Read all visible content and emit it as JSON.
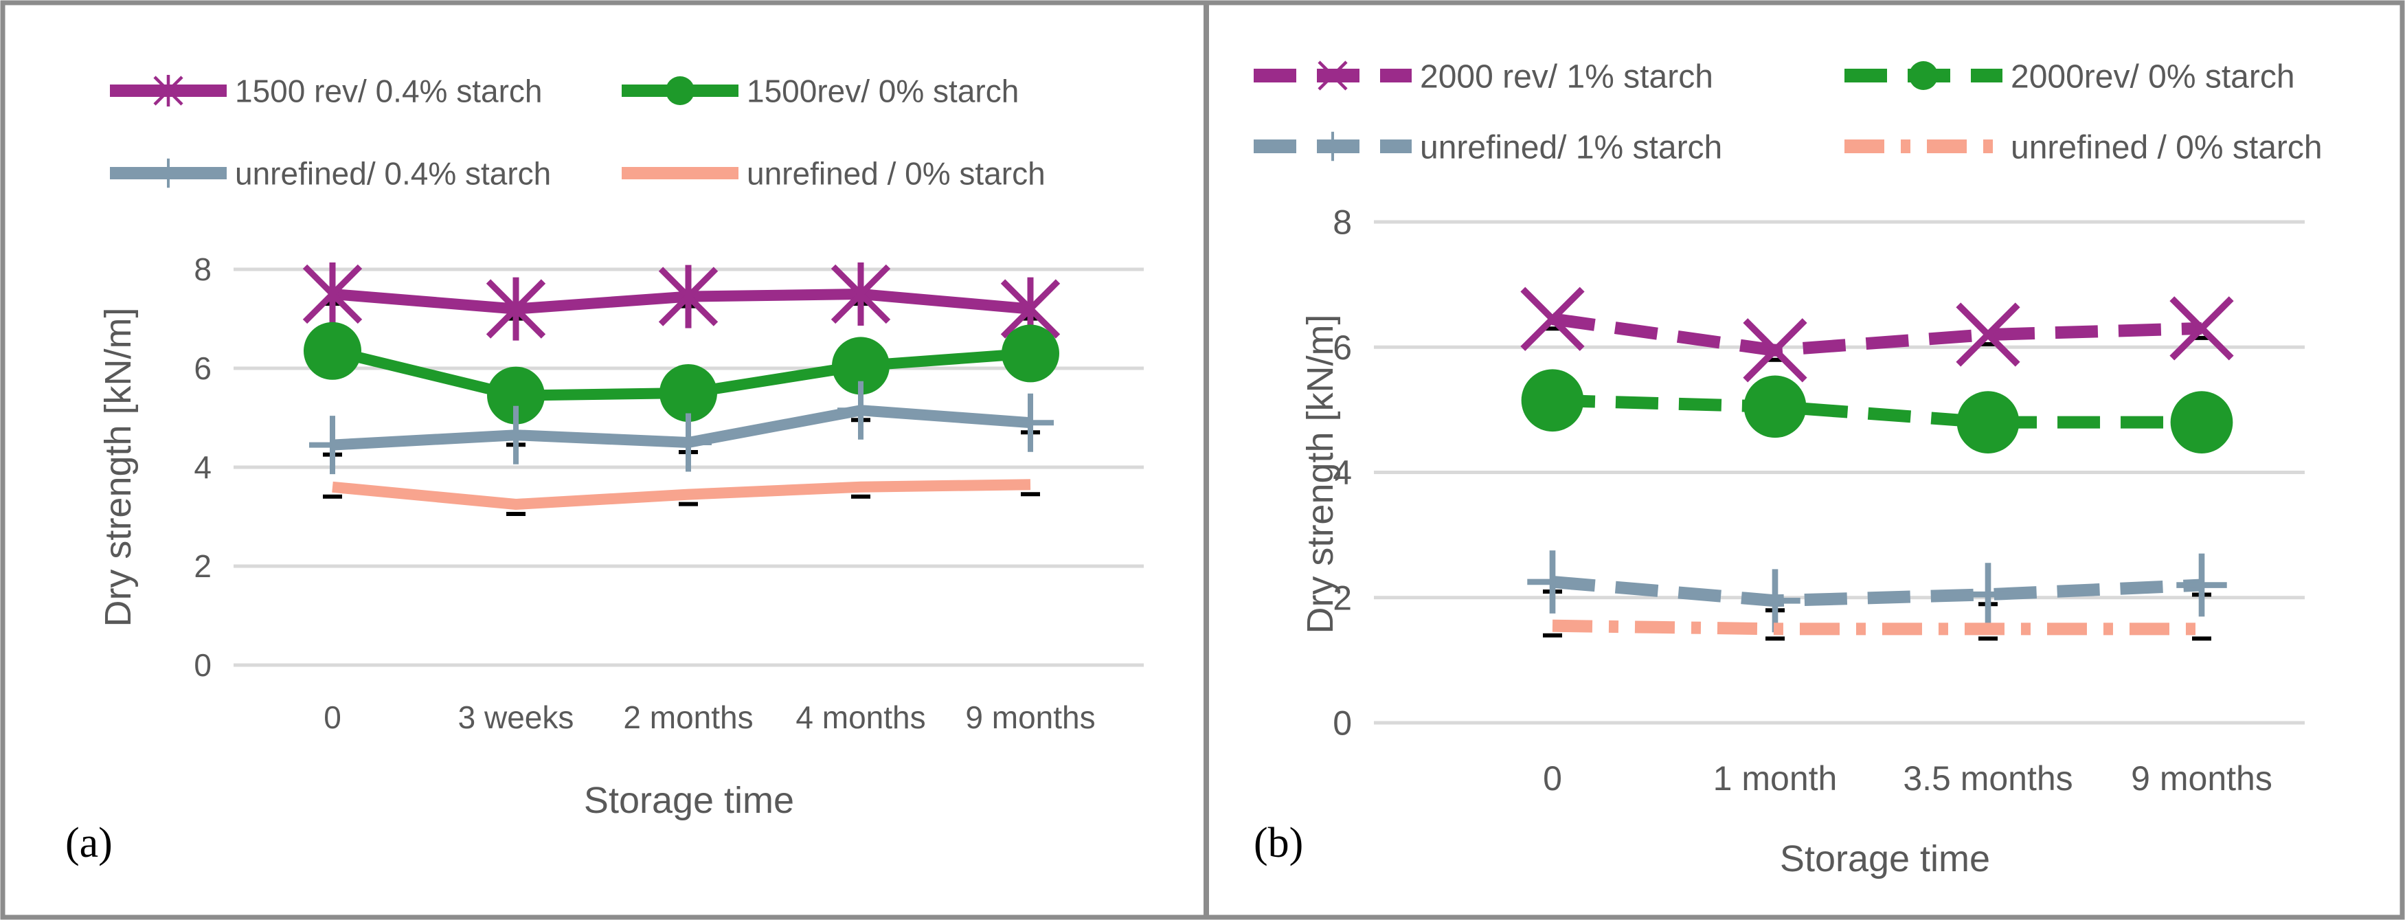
{
  "chart_data": [
    {
      "type": "line",
      "panel_label": "(a)",
      "xlabel": "Storage time",
      "ylabel": "Dry strength [kN/m]",
      "categories": [
        "0",
        "3 weeks",
        "2 months",
        "4 months",
        "9 months"
      ],
      "ylim": [
        0,
        8
      ],
      "yticks": [
        "0",
        "2",
        "4",
        "6",
        "8"
      ],
      "grid": true,
      "legend_position": "top",
      "series": [
        {
          "name": "1500 rev/ 0.4% starch",
          "values": [
            7.5,
            7.2,
            7.45,
            7.5,
            7.2
          ],
          "color": "#9B2B8A",
          "marker": "star",
          "dash": "solid"
        },
        {
          "name": "1500rev/ 0% starch",
          "values": [
            6.35,
            5.45,
            5.5,
            6.05,
            6.3
          ],
          "color": "#1E9A2A",
          "marker": "circle",
          "dash": "solid"
        },
        {
          "name": "unrefined/ 0.4% starch",
          "values": [
            4.45,
            4.65,
            4.5,
            5.15,
            4.9
          ],
          "color": "#7F99AC",
          "marker": "plus",
          "dash": "solid"
        },
        {
          "name": "unrefined / 0% starch",
          "values": [
            3.6,
            3.25,
            3.45,
            3.6,
            3.65
          ],
          "color": "#F8A48E",
          "marker": "none",
          "dash": "solid"
        }
      ]
    },
    {
      "type": "line",
      "panel_label": "(b)",
      "xlabel": "Storage time",
      "ylabel": "Dry strength [kN/m]",
      "categories": [
        "0",
        "1 month",
        "3.5 months",
        "9 months"
      ],
      "ylim": [
        0,
        8
      ],
      "yticks": [
        "0",
        "2",
        "4",
        "6",
        "8"
      ],
      "grid": true,
      "legend_position": "top",
      "series": [
        {
          "name": "2000 rev/ 1% starch",
          "values": [
            6.45,
            5.95,
            6.2,
            6.3
          ],
          "color": "#9B2B8A",
          "marker": "x",
          "dash": "dash"
        },
        {
          "name": "2000rev/ 0% starch",
          "values": [
            5.15,
            5.05,
            4.8,
            4.8
          ],
          "color": "#1E9A2A",
          "marker": "circle",
          "dash": "dash"
        },
        {
          "name": "unrefined/ 1% starch",
          "values": [
            2.25,
            1.95,
            2.05,
            2.2
          ],
          "color": "#7F99AC",
          "marker": "plus",
          "dash": "dash"
        },
        {
          "name": "unrefined / 0% starch",
          "values": [
            1.55,
            1.5,
            1.5,
            1.5
          ],
          "color": "#F8A48E",
          "marker": "none",
          "dash": "dashdot"
        }
      ]
    }
  ]
}
